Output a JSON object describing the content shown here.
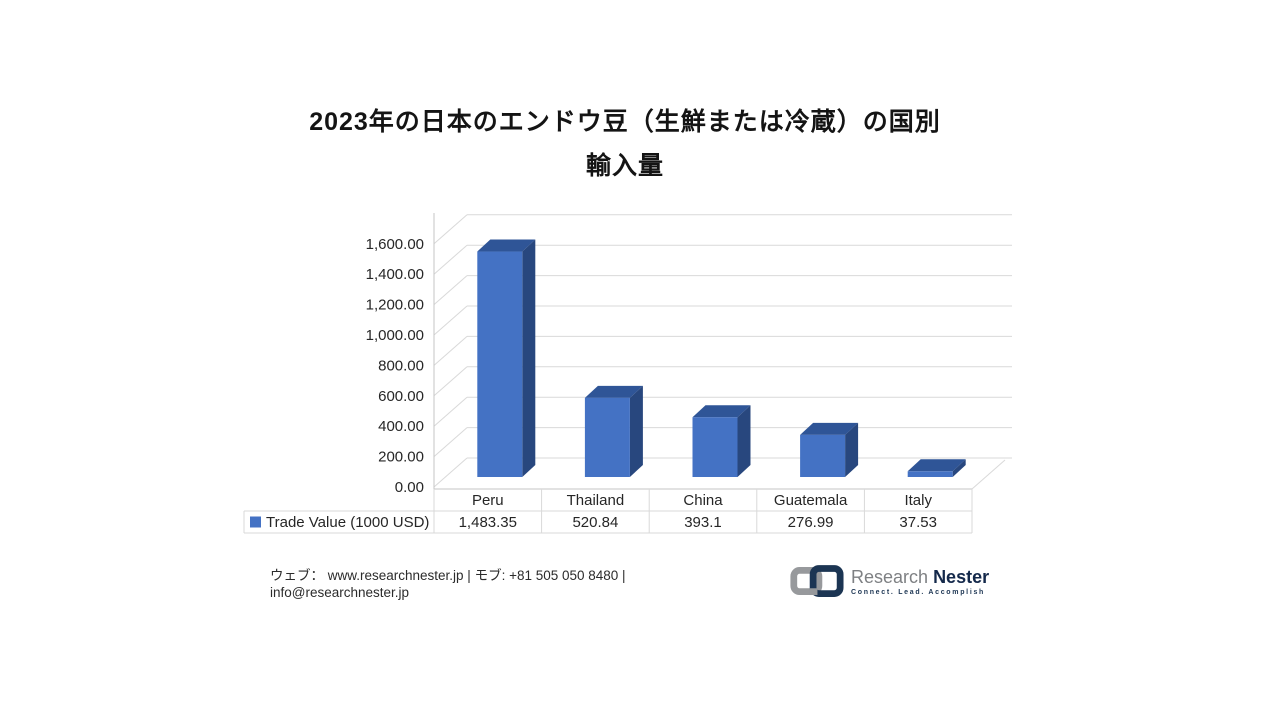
{
  "title": {
    "line1": "2023年の日本のエンドウ豆（生鮮または冷蔵）の国別",
    "line2": "輸入量"
  },
  "chart_data": {
    "type": "bar",
    "style": "3d-column",
    "title": "2023年の日本のエンドウ豆（生鮮または冷蔵）の国別輸入量",
    "categories": [
      "Peru",
      "Thailand",
      "China",
      "Guatemala",
      "Italy"
    ],
    "series": [
      {
        "name": "Trade Value (1000 USD)",
        "values": [
          1483.35,
          520.84,
          393.1,
          276.99,
          37.53
        ],
        "values_display": [
          "1,483.35",
          "520.84",
          "393.1",
          "276.99",
          "37.53"
        ]
      }
    ],
    "xlabel": "",
    "ylabel": "",
    "ylim": [
      0,
      1600
    ],
    "ytick_step": 200,
    "yticks_display": [
      "0.00",
      "200.00",
      "400.00",
      "600.00",
      "800.00",
      "1,000.00",
      "1,200.00",
      "1,400.00",
      "1,600.00"
    ],
    "grid": true,
    "legend_position": "bottom-table-left",
    "colors": {
      "bar_front": "#4472C4",
      "bar_top": "#2F5597",
      "bar_side": "#28477E",
      "gridline": "#D9D9D9",
      "axis": "#C6C6C6",
      "table_border": "#D9D9D9",
      "text": "#262626"
    }
  },
  "footer": {
    "contact_line1": "ウェブ： www.researchnester.jp | モブ: +81 505 050 8480 |",
    "contact_line2": "info@researchnester.jp"
  },
  "logo": {
    "brand_first": "Research",
    "brand_second": "Nester",
    "tagline": "Connect. Lead. Accomplish",
    "mark_gray": "#97999C",
    "mark_navy": "#1C3553"
  }
}
